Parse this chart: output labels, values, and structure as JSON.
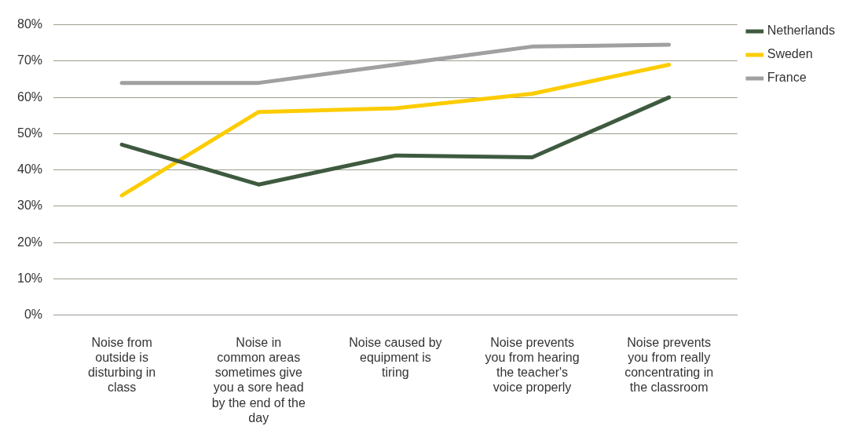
{
  "chart_data": {
    "type": "line",
    "categories": [
      "Noise from outside is disturbing in class",
      "Noise in common areas sometimes give you a sore head by the end of the day",
      "Noise caused by equipment is tiring",
      "Noise prevents you from hearing the teacher's voice properly",
      "Noise prevents you from really concentrating in the classroom"
    ],
    "series": [
      {
        "name": "Netherlands",
        "color": "#3e5a3f",
        "values": [
          47,
          36,
          44,
          43.5,
          60
        ]
      },
      {
        "name": "Sweden",
        "color": "#fccc00",
        "values": [
          33,
          56,
          57,
          61,
          69
        ]
      },
      {
        "name": "France",
        "color": "#a09fa1",
        "values": [
          64,
          64,
          69,
          74,
          74.5
        ]
      }
    ],
    "ylim": [
      0,
      80
    ],
    "yticks": [
      {
        "value": 0,
        "label": "0%"
      },
      {
        "value": 10,
        "label": "10%"
      },
      {
        "value": 20,
        "label": "20%"
      },
      {
        "value": 30,
        "label": "30%"
      },
      {
        "value": 40,
        "label": "40%"
      },
      {
        "value": 50,
        "label": "50%"
      },
      {
        "value": 60,
        "label": "60%"
      },
      {
        "value": 70,
        "label": "70%"
      },
      {
        "value": 80,
        "label": "80%"
      }
    ],
    "grid": "y",
    "legend": "right",
    "marker": "none",
    "line_style": "solid"
  }
}
